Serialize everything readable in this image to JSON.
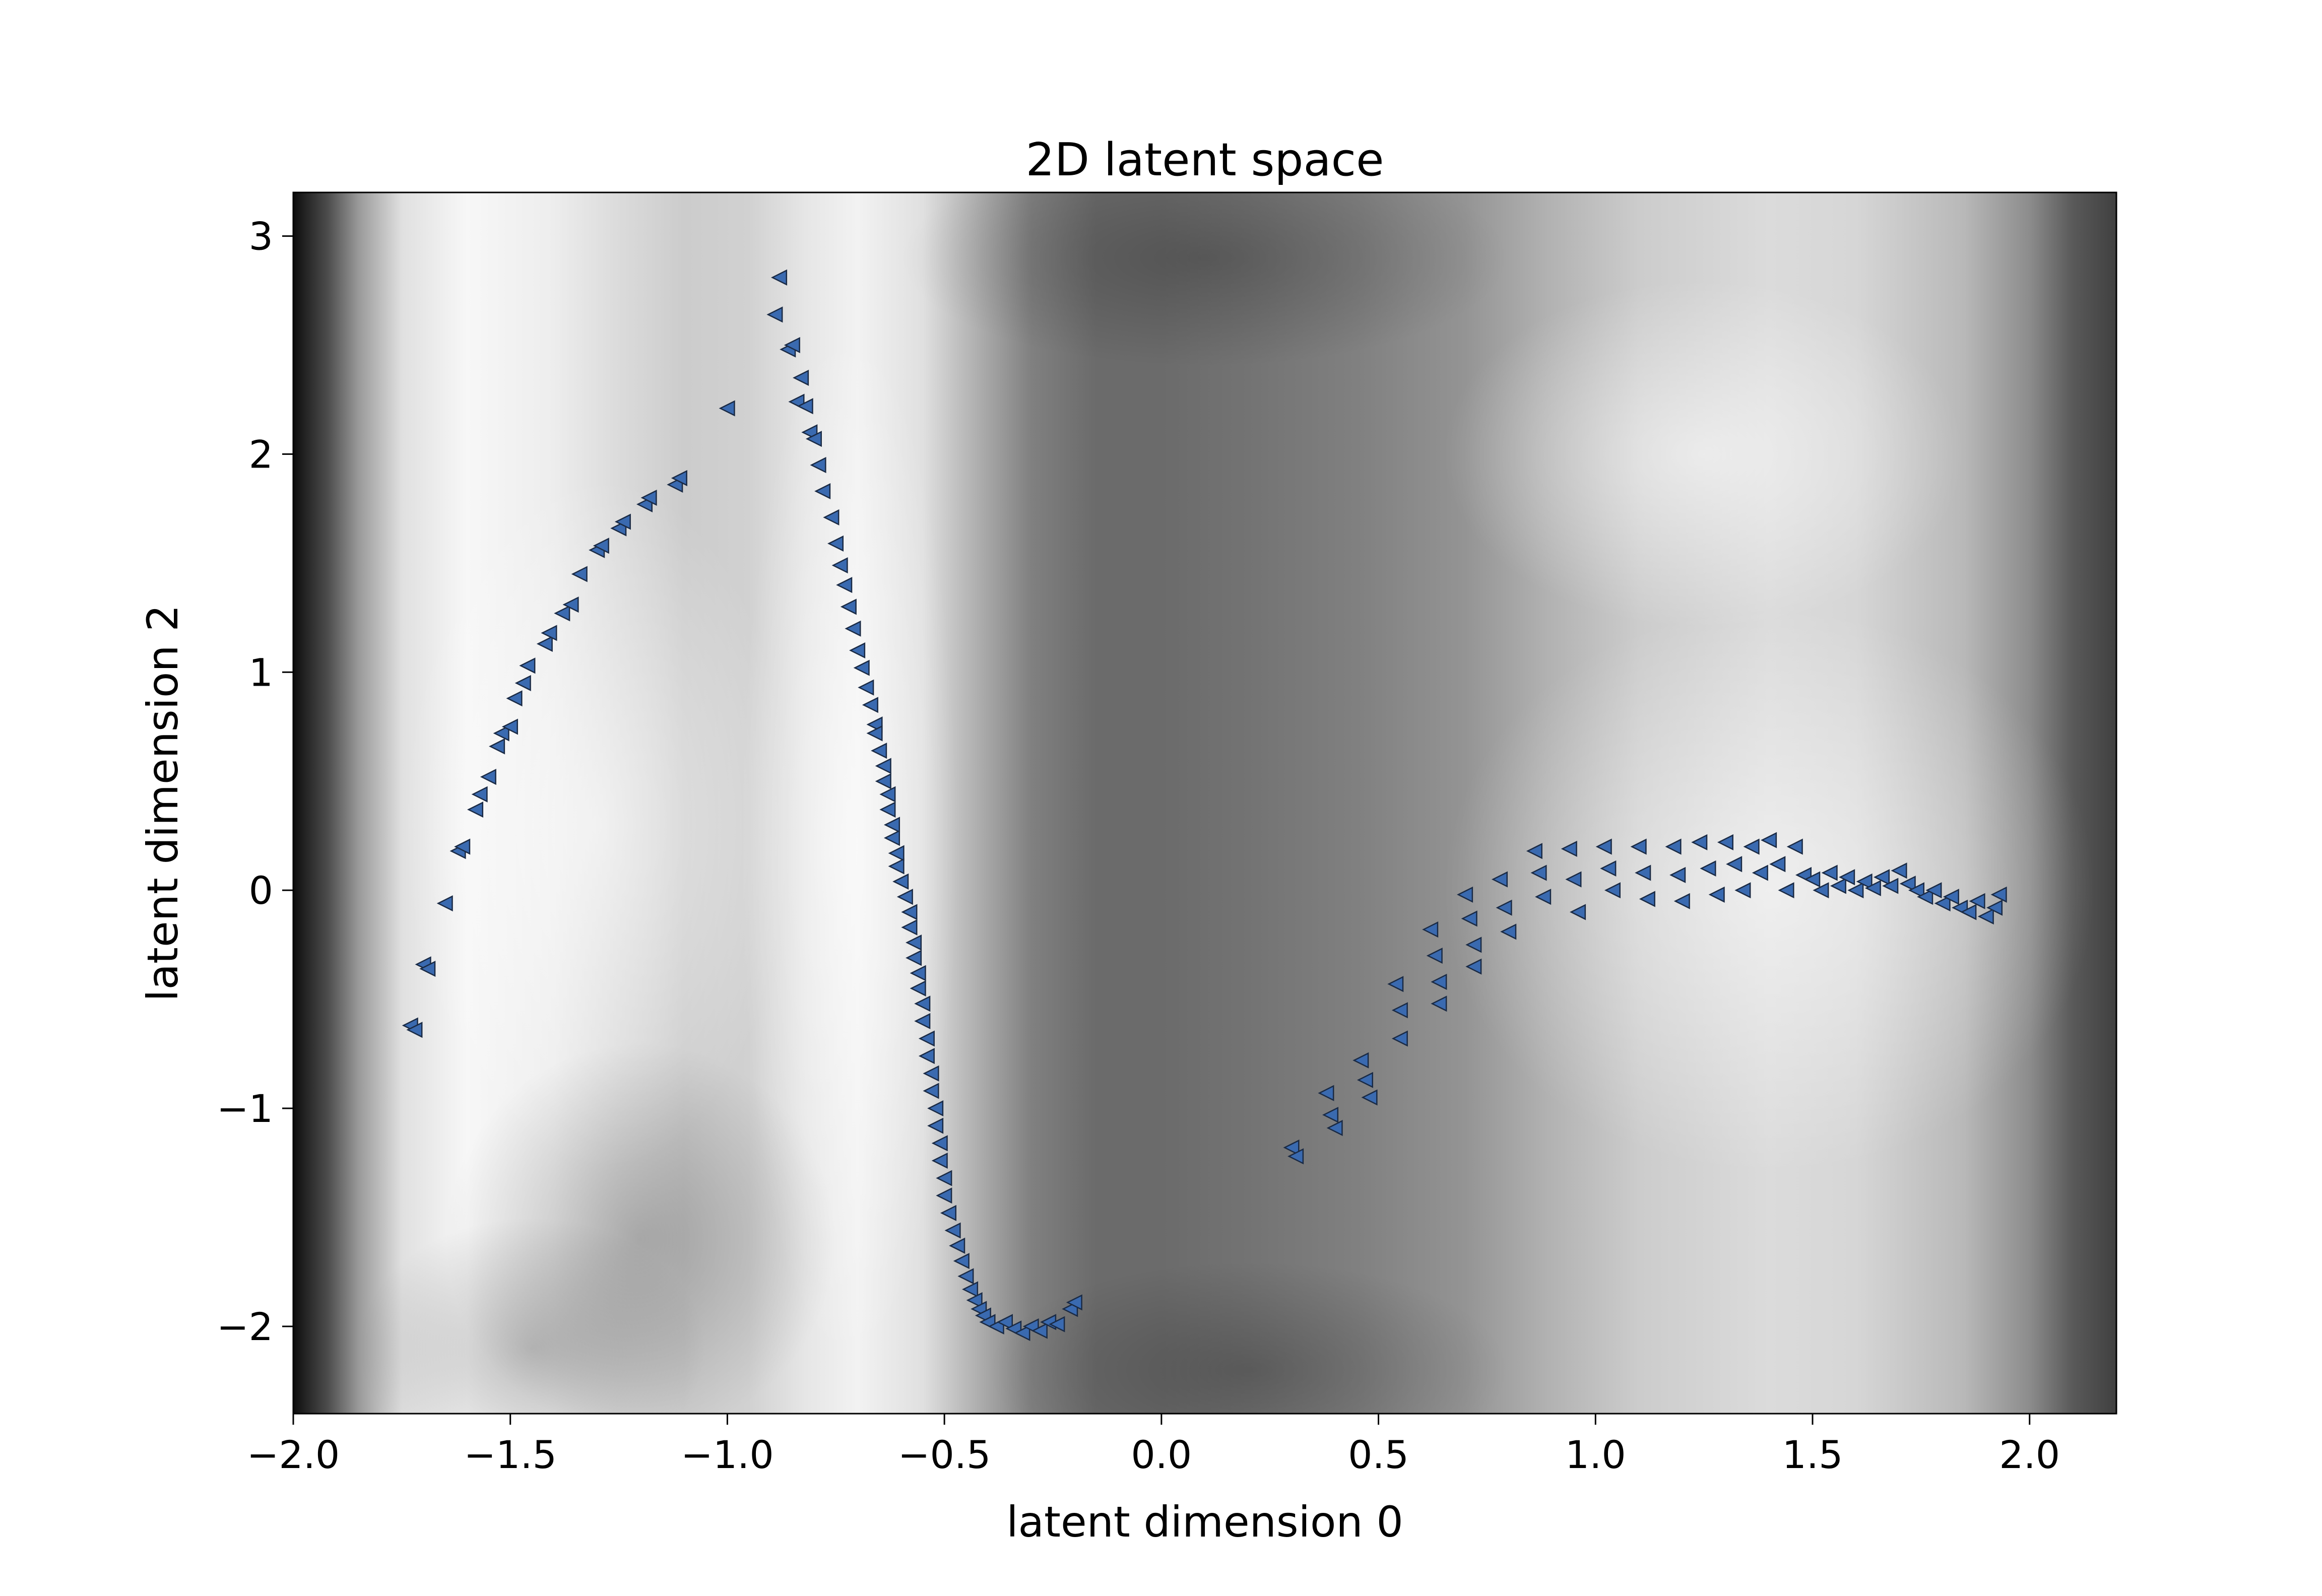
{
  "chart_data": {
    "type": "scatter",
    "title": "2D latent space",
    "xlabel": "latent dimension 0",
    "ylabel": "latent dimension 2",
    "xlim": [
      -2.0,
      2.2
    ],
    "ylim": [
      -2.4,
      3.2
    ],
    "xticks": [
      -2.0,
      -1.5,
      -1.0,
      -0.5,
      0.0,
      0.5,
      1.0,
      1.5,
      2.0
    ],
    "xtick_labels": [
      "−2.0",
      "−1.5",
      "−1.0",
      "−0.5",
      "0.0",
      "0.5",
      "1.0",
      "1.5",
      "2.0"
    ],
    "yticks": [
      -2,
      -1,
      0,
      1,
      2,
      3
    ],
    "ytick_labels": [
      "−2",
      "−1",
      "0",
      "1",
      "2",
      "3"
    ],
    "grid": false,
    "legend": "none",
    "marker": "left-pointing triangle",
    "marker_color": "#3a6ab0",
    "marker_edge_color": "#1a2a44",
    "background": {
      "type": "heatmap",
      "colormap": "gray",
      "x_profile": [
        [
          -2.0,
          0.05
        ],
        [
          -1.92,
          0.3
        ],
        [
          -1.85,
          0.6
        ],
        [
          -1.75,
          0.88
        ],
        [
          -1.6,
          0.97
        ],
        [
          -1.4,
          0.93
        ],
        [
          -1.25,
          0.86
        ],
        [
          -1.1,
          0.8
        ],
        [
          -0.95,
          0.82
        ],
        [
          -0.82,
          0.9
        ],
        [
          -0.7,
          0.95
        ],
        [
          -0.55,
          0.88
        ],
        [
          -0.42,
          0.68
        ],
        [
          -0.3,
          0.5
        ],
        [
          -0.15,
          0.42
        ],
        [
          0.0,
          0.42
        ],
        [
          0.2,
          0.45
        ],
        [
          0.45,
          0.5
        ],
        [
          0.7,
          0.58
        ],
        [
          0.9,
          0.7
        ],
        [
          1.1,
          0.8
        ],
        [
          1.4,
          0.86
        ],
        [
          1.6,
          0.84
        ],
        [
          1.85,
          0.72
        ],
        [
          2.0,
          0.55
        ],
        [
          2.1,
          0.35
        ],
        [
          2.2,
          0.25
        ]
      ]
    },
    "series": [
      {
        "x": [
          -1.73,
          -1.72,
          -1.7,
          -1.69,
          -1.65,
          -1.62,
          -1.61,
          -1.58,
          -1.57,
          -1.55,
          -1.53,
          -1.52,
          -1.5,
          -1.49,
          -1.47,
          -1.46,
          -1.42,
          -1.41,
          -1.38,
          -1.36,
          -1.34,
          -1.3,
          -1.29,
          -1.25,
          -1.24,
          -1.19,
          -1.18,
          -1.12,
          -1.11,
          -1.0
        ],
        "y": [
          -0.62,
          -0.64,
          -0.34,
          -0.36,
          -0.06,
          0.18,
          0.2,
          0.37,
          0.44,
          0.52,
          0.66,
          0.72,
          0.75,
          0.88,
          0.95,
          1.03,
          1.13,
          1.18,
          1.27,
          1.31,
          1.45,
          1.56,
          1.58,
          1.66,
          1.69,
          1.77,
          1.8,
          1.86,
          1.89,
          2.21
        ]
      },
      {
        "x": [
          -0.88,
          -0.89,
          -0.86,
          -0.85,
          -0.83,
          -0.84,
          -0.82,
          -0.81,
          -0.8,
          -0.79,
          -0.78,
          -0.76,
          -0.75,
          -0.74,
          -0.73,
          -0.72,
          -0.71,
          -0.7,
          -0.69,
          -0.68,
          -0.67,
          -0.66,
          -0.66,
          -0.65,
          -0.64,
          -0.64,
          -0.63,
          -0.63,
          -0.62,
          -0.62,
          -0.61,
          -0.61,
          -0.6,
          -0.59,
          -0.58,
          -0.58,
          -0.57,
          -0.57,
          -0.56,
          -0.56,
          -0.55,
          -0.55,
          -0.54,
          -0.54,
          -0.53,
          -0.53,
          -0.52,
          -0.52,
          -0.51,
          -0.51,
          -0.5,
          -0.5,
          -0.49,
          -0.48,
          -0.47,
          -0.46,
          -0.45,
          -0.44,
          -0.43,
          -0.42,
          -0.41,
          -0.4,
          -0.38,
          -0.36,
          -0.34,
          -0.32,
          -0.3,
          -0.28,
          -0.26,
          -0.24,
          -0.21,
          -0.2
        ],
        "y": [
          2.81,
          2.64,
          2.48,
          2.5,
          2.35,
          2.24,
          2.22,
          2.1,
          2.07,
          1.95,
          1.83,
          1.71,
          1.59,
          1.49,
          1.4,
          1.3,
          1.2,
          1.1,
          1.02,
          0.93,
          0.85,
          0.76,
          0.72,
          0.64,
          0.57,
          0.5,
          0.44,
          0.37,
          0.3,
          0.24,
          0.17,
          0.11,
          0.04,
          -0.03,
          -0.1,
          -0.17,
          -0.24,
          -0.31,
          -0.38,
          -0.45,
          -0.52,
          -0.6,
          -0.68,
          -0.76,
          -0.84,
          -0.92,
          -1.0,
          -1.08,
          -1.16,
          -1.24,
          -1.32,
          -1.4,
          -1.48,
          -1.56,
          -1.63,
          -1.7,
          -1.77,
          -1.83,
          -1.88,
          -1.92,
          -1.95,
          -1.98,
          -2.0,
          -1.98,
          -2.01,
          -2.03,
          -2.0,
          -2.02,
          -1.98,
          -1.99,
          -1.92,
          -1.89
        ]
      },
      {
        "x": [
          0.3,
          0.31,
          0.38,
          0.39,
          0.4,
          0.46,
          0.47,
          0.48,
          0.54,
          0.55,
          0.55,
          0.62,
          0.63,
          0.64,
          0.64,
          0.7,
          0.71,
          0.72,
          0.72,
          0.78,
          0.79,
          0.8,
          0.86,
          0.87,
          0.88,
          0.94,
          0.95,
          0.96,
          1.02,
          1.03,
          1.04,
          1.1,
          1.11,
          1.12,
          1.18,
          1.19,
          1.2,
          1.24,
          1.26,
          1.28,
          1.3,
          1.32,
          1.34,
          1.36,
          1.38,
          1.4,
          1.42,
          1.44,
          1.46,
          1.48,
          1.5,
          1.52,
          1.54,
          1.56,
          1.58,
          1.6,
          1.62,
          1.64,
          1.66,
          1.68,
          1.7,
          1.72,
          1.74,
          1.76,
          1.78,
          1.8,
          1.82,
          1.84,
          1.86,
          1.88,
          1.9,
          1.92,
          1.93
        ],
        "y": [
          -1.18,
          -1.22,
          -0.93,
          -1.03,
          -1.09,
          -0.78,
          -0.87,
          -0.95,
          -0.43,
          -0.55,
          -0.68,
          -0.18,
          -0.3,
          -0.42,
          -0.52,
          -0.02,
          -0.13,
          -0.25,
          -0.35,
          0.05,
          -0.08,
          -0.19,
          0.18,
          0.08,
          -0.03,
          0.19,
          0.05,
          -0.1,
          0.2,
          0.1,
          0.0,
          0.2,
          0.08,
          -0.04,
          0.2,
          0.07,
          -0.05,
          0.22,
          0.1,
          -0.02,
          0.22,
          0.12,
          0.0,
          0.2,
          0.08,
          0.23,
          0.12,
          0.0,
          0.2,
          0.07,
          0.05,
          0.0,
          0.08,
          0.02,
          0.06,
          0.0,
          0.04,
          0.01,
          0.06,
          0.02,
          0.09,
          0.03,
          0.0,
          -0.03,
          0.0,
          -0.06,
          -0.03,
          -0.08,
          -0.1,
          -0.05,
          -0.12,
          -0.08,
          -0.02
        ]
      }
    ]
  }
}
